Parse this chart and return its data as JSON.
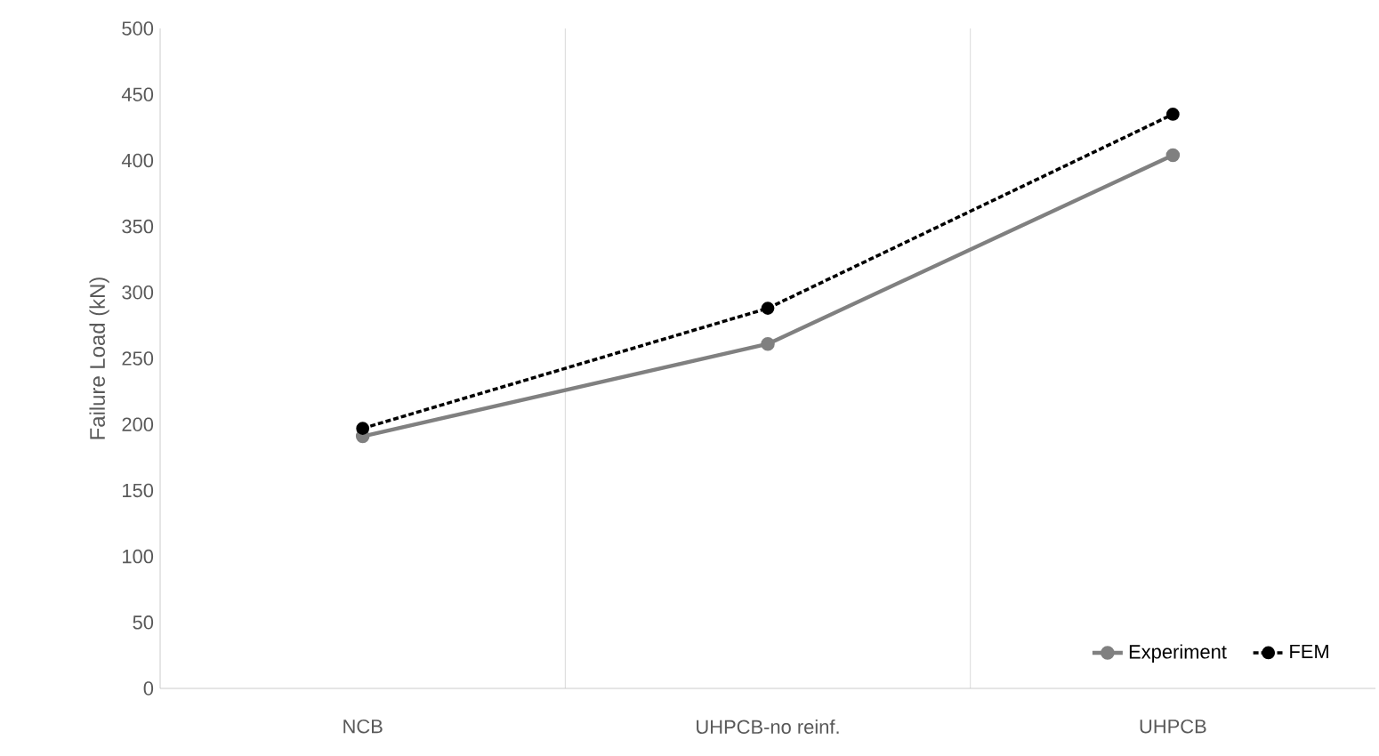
{
  "chart_data": {
    "type": "line",
    "ylabel": "Failure Load (kN)",
    "categories": [
      "NCB",
      "UHPCB-no reinf.",
      "UHPCB"
    ],
    "series": [
      {
        "name": "Experiment",
        "color": "#808080",
        "values": [
          191,
          261,
          404
        ],
        "line_style": "solid"
      },
      {
        "name": "FEM",
        "color": "#000000",
        "values": [
          197,
          288,
          435
        ],
        "line_style": "dashed"
      }
    ],
    "ylim": [
      0,
      500
    ],
    "yticks": [
      0,
      50,
      100,
      150,
      200,
      250,
      300,
      350,
      400,
      450,
      500
    ],
    "grid": "x",
    "legend": "bottom right",
    "marker": "circle"
  }
}
